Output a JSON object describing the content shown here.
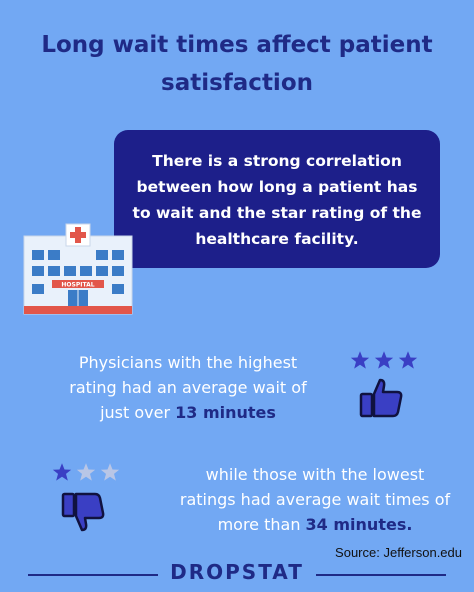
{
  "title_line1": "Long wait times affect patient",
  "title_line2": "satisfaction",
  "callout": {
    "line1": "There is a strong correlation",
    "line2": "between how long a patient has",
    "line3": "to wait and the star rating of the",
    "line4": "healthcare facility."
  },
  "hospital_sign": "HOSPITAL",
  "stat_high": {
    "line1": "Physicians with the highest",
    "line2": "rating had an average wait of",
    "line3_pre": "just over ",
    "value": "13 minutes",
    "rating_stars": 3,
    "icon": "thumbs-up-icon"
  },
  "stat_low": {
    "line1": "while those with the lowest",
    "line2": "ratings had average wait times of",
    "line3_pre": "more than ",
    "value": "34 minutes.",
    "rating_stars": 1,
    "icon": "thumbs-down-icon"
  },
  "source": "Source: Jefferson.edu",
  "brand": "DROPSTAT",
  "colors": {
    "background": "#72a8f3",
    "navy": "#1d1f8a",
    "star_active": "#3a3fc4",
    "star_inactive": "#b9c6e6"
  }
}
